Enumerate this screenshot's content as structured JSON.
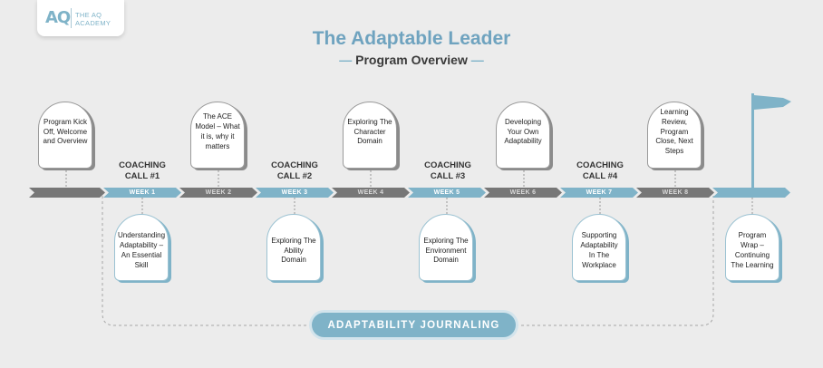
{
  "logo": {
    "mark": "AQ",
    "line1": "THE AQ",
    "line2": "ACADEMY"
  },
  "title": "The Adaptable Leader",
  "subtitle": "Program Overview",
  "weeks": [
    "WEEK 1",
    "WEEK 2",
    "WEEK 3",
    "WEEK 4",
    "WEEK 5",
    "WEEK 6",
    "WEEK 7",
    "WEEK 8"
  ],
  "coaching_calls": [
    {
      "line1": "COACHING",
      "line2": "CALL #1"
    },
    {
      "line1": "COACHING",
      "line2": "CALL #2"
    },
    {
      "line1": "COACHING",
      "line2": "CALL #3"
    },
    {
      "line1": "COACHING",
      "line2": "CALL #4"
    }
  ],
  "top_cards": [
    "Program Kick Off, Welcome and Overview",
    "The ACE Model – What it is, why it matters",
    "Exploring The Character Domain",
    "Developing Your Own Adaptability",
    "Learning Review, Program Close, Next Steps"
  ],
  "bottom_cards": [
    "Understanding Adaptability – An Essential Skill",
    "Exploring The Ability Domain",
    "Exploring The Environment Domain",
    "Supporting Adaptability In The Workplace",
    "Program Wrap – Continuing The Learning"
  ],
  "journaling": "ADAPTABILITY JOURNALING",
  "colors": {
    "accent": "#7fb3c8",
    "dark": "#777777",
    "background": "#ececec"
  },
  "icons": [
    "flag-icon"
  ]
}
